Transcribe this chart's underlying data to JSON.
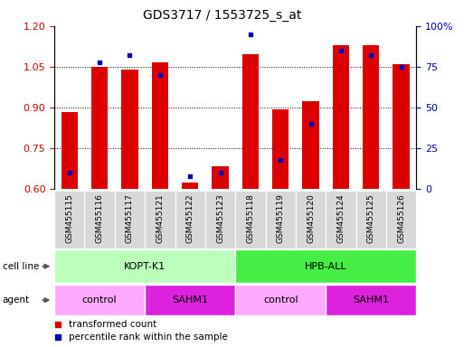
{
  "title": "GDS3717 / 1553725_s_at",
  "samples": [
    "GSM455115",
    "GSM455116",
    "GSM455117",
    "GSM455121",
    "GSM455122",
    "GSM455123",
    "GSM455118",
    "GSM455119",
    "GSM455120",
    "GSM455124",
    "GSM455125",
    "GSM455126"
  ],
  "transformed_count": [
    0.885,
    1.05,
    1.04,
    1.065,
    0.625,
    0.685,
    1.095,
    0.895,
    0.925,
    1.13,
    1.13,
    1.06
  ],
  "percentile_rank": [
    10,
    78,
    82,
    70,
    8,
    10,
    95,
    18,
    40,
    85,
    82,
    75
  ],
  "ymin": 0.6,
  "ymax": 1.2,
  "yticks": [
    0.6,
    0.75,
    0.9,
    1.05,
    1.2
  ],
  "y2ticks": [
    0,
    25,
    50,
    75,
    100
  ],
  "bar_color": "#dd0000",
  "dot_color": "#0000bb",
  "cell_lines": [
    {
      "label": "KOPT-K1",
      "start": 0,
      "end": 6,
      "color": "#bbffbb"
    },
    {
      "label": "HPB-ALL",
      "start": 6,
      "end": 12,
      "color": "#44ee44"
    }
  ],
  "agent_groups": [
    {
      "label": "control",
      "start": 0,
      "end": 3,
      "color": "#ffaaff"
    },
    {
      "label": "SAHM1",
      "start": 3,
      "end": 6,
      "color": "#dd22dd"
    },
    {
      "label": "control",
      "start": 6,
      "end": 9,
      "color": "#ffaaff"
    },
    {
      "label": "SAHM1",
      "start": 9,
      "end": 12,
      "color": "#dd22dd"
    }
  ],
  "legend_items": [
    {
      "label": "transformed count",
      "color": "#dd0000"
    },
    {
      "label": "percentile rank within the sample",
      "color": "#0000bb"
    }
  ],
  "bar_width": 0.55,
  "xtick_bg": "#cccccc",
  "left_label_color": "#cc0000",
  "right_label_color": "#0000bb"
}
